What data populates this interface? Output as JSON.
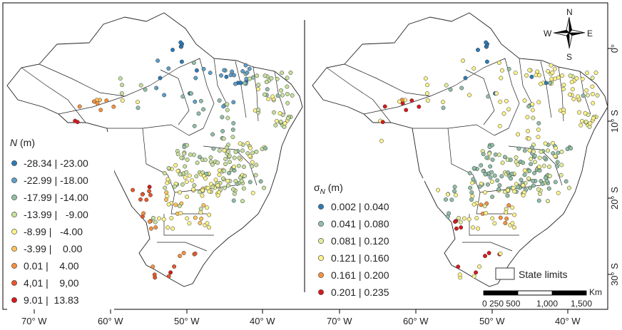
{
  "axes": {
    "bottom_ticks": [
      "70° W",
      "60° W",
      "50° W",
      "40° W",
      "70° W",
      "60° W",
      "50° W",
      "40° W"
    ],
    "right_ticks": [
      "0°",
      "10° S",
      "20° S",
      "30° S"
    ]
  },
  "left_panel": {
    "legend_title_var": "N",
    "legend_title_unit": " (m)",
    "legend": [
      {
        "label": "-28.34 | -23.00",
        "color": "#2c7bb6"
      },
      {
        "label": "-22.99 | -18.00",
        "color": "#5e9fc9"
      },
      {
        "label": "-17.99 | -14.00",
        "color": "#91bfa6"
      },
      {
        "label": "-13.99 |   -9.00",
        "color": "#c8e09e"
      },
      {
        "label": "-8.99 |   -4.00",
        "color": "#fdf38b"
      },
      {
        "label": "-3.99 |    0.00",
        "color": "#fdc35e"
      },
      {
        "label": "0.01 |    4.00",
        "color": "#f6913e"
      },
      {
        "label": "4,01 |    9,00",
        "color": "#e8562c"
      },
      {
        "label": "9.01 |  13.83",
        "color": "#d7191c"
      }
    ]
  },
  "right_panel": {
    "legend_title_var": "σ",
    "legend_title_sub": "N",
    "legend_title_unit": " (m)",
    "legend": [
      {
        "label": "0.002 | 0.040",
        "color": "#2c7bb6"
      },
      {
        "label": "0.041 | 0.080",
        "color": "#91bfa6"
      },
      {
        "label": "0.081 | 0.120",
        "color": "#e3ed9b"
      },
      {
        "label": "0.121 | 0.160",
        "color": "#fdf38b"
      },
      {
        "label": "0.161 | 0.200",
        "color": "#f6913e"
      },
      {
        "label": "0.201 | 0.235",
        "color": "#d7191c"
      }
    ]
  },
  "state_limits_label": "State limits",
  "scale_bar": {
    "unit": "Km",
    "labels": [
      "0 250 500",
      "1,000",
      "1,500"
    ]
  },
  "compass": {
    "n": "N",
    "s": "S",
    "e": "E",
    "w": "W"
  }
}
